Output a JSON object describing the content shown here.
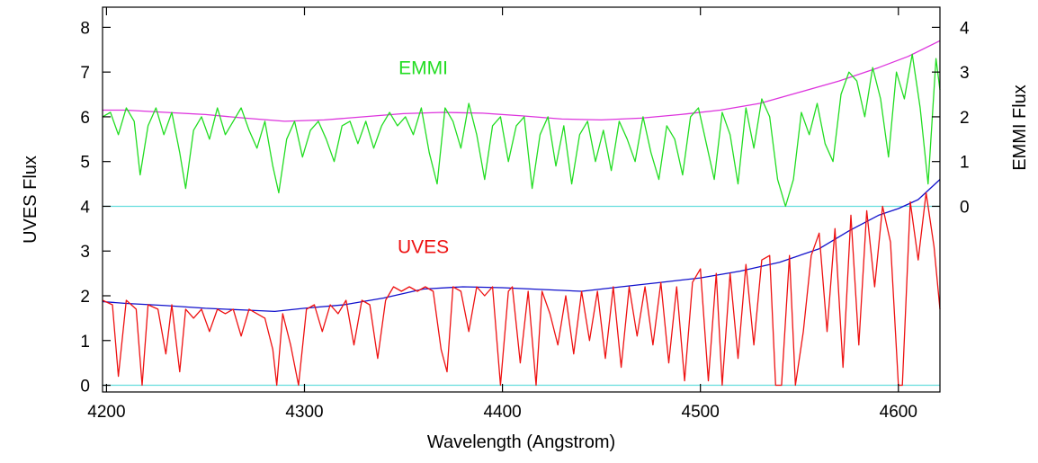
{
  "chart_data": {
    "type": "line",
    "title": "",
    "xlabel": "Wavelength (Angstrom)",
    "ylabel_left": "UVES Flux",
    "ylabel_right": "EMMI Flux",
    "xlim": [
      4198,
      4621
    ],
    "ylim_left": [
      -0.15,
      8.45
    ],
    "ylim_right": [
      -4.15,
      4.45
    ],
    "right_axis_offset": -4,
    "grid": false,
    "x_ticks": [
      4200,
      4300,
      4400,
      4500,
      4600
    ],
    "x_tick_labels": [
      "4200",
      "4300",
      "4400",
      "4500",
      "4600"
    ],
    "y_left_ticks": [
      0,
      1,
      2,
      3,
      4,
      5,
      6,
      7,
      8
    ],
    "y_left_tick_labels": [
      "0",
      "1",
      "2",
      "3",
      "4",
      "5",
      "6",
      "7",
      "8"
    ],
    "y_right_ticks": [
      0,
      1,
      2,
      3,
      4
    ],
    "y_right_tick_labels": [
      "0",
      "1",
      "2",
      "3",
      "4"
    ],
    "annotations": [
      {
        "text": "EMMI",
        "x": 4360,
        "y": 6.95,
        "color": "#22dd22"
      },
      {
        "text": "UVES",
        "x": 4360,
        "y": 2.95,
        "color": "#ee1111"
      }
    ],
    "reference_lines": [
      {
        "y": 0,
        "axis": "left",
        "color": "#66dddd"
      },
      {
        "y": 4,
        "axis": "left",
        "color": "#66dddd"
      }
    ],
    "series": [
      {
        "role": "UVES continuum",
        "axis": "left",
        "color": "#1010cc",
        "x": [
          4198,
          4210,
          4230,
          4250,
          4270,
          4285,
          4300,
          4320,
          4340,
          4360,
          4380,
          4400,
          4420,
          4440,
          4460,
          4480,
          4500,
          4520,
          4540,
          4560,
          4575,
          4590,
          4600,
          4610,
          4621
        ],
        "y": [
          1.87,
          1.83,
          1.78,
          1.72,
          1.68,
          1.65,
          1.72,
          1.8,
          1.95,
          2.15,
          2.2,
          2.18,
          2.14,
          2.1,
          2.2,
          2.3,
          2.4,
          2.55,
          2.75,
          3.05,
          3.45,
          3.8,
          3.95,
          4.15,
          4.6
        ]
      },
      {
        "role": "EMMI continuum",
        "axis": "right",
        "color": "#dd33dd",
        "x": [
          4198,
          4210,
          4230,
          4250,
          4270,
          4290,
          4310,
          4330,
          4350,
          4370,
          4390,
          4410,
          4430,
          4450,
          4470,
          4490,
          4510,
          4530,
          4550,
          4570,
          4590,
          4605,
          4621
        ],
        "y": [
          2.15,
          2.15,
          2.1,
          2.05,
          1.97,
          1.9,
          1.93,
          2.0,
          2.07,
          2.1,
          2.08,
          2.02,
          1.95,
          1.93,
          1.97,
          2.05,
          2.15,
          2.3,
          2.55,
          2.8,
          3.1,
          3.35,
          3.7
        ]
      },
      {
        "role": "EMMI spectrum",
        "axis": "right",
        "color": "#22dd22",
        "x": [
          4198,
          4202,
          4206,
          4210,
          4214,
          4217,
          4221,
          4225,
          4229,
          4233,
          4237,
          4240,
          4244,
          4248,
          4252,
          4256,
          4260,
          4264,
          4268,
          4272,
          4276,
          4280,
          4284,
          4287,
          4291,
          4295,
          4299,
          4303,
          4307,
          4311,
          4315,
          4319,
          4323,
          4327,
          4331,
          4335,
          4339,
          4343,
          4347,
          4351,
          4355,
          4359,
          4363,
          4367,
          4371,
          4375,
          4379,
          4383,
          4387,
          4391,
          4395,
          4399,
          4403,
          4407,
          4411,
          4415,
          4419,
          4423,
          4427,
          4431,
          4435,
          4439,
          4443,
          4447,
          4451,
          4455,
          4459,
          4463,
          4467,
          4471,
          4475,
          4479,
          4483,
          4487,
          4491,
          4495,
          4499,
          4503,
          4507,
          4511,
          4515,
          4519,
          4523,
          4527,
          4531,
          4535,
          4539,
          4543,
          4547,
          4551,
          4555,
          4559,
          4563,
          4567,
          4571,
          4575,
          4579,
          4583,
          4587,
          4591,
          4595,
          4599,
          4603,
          4607,
          4611,
          4615,
          4619,
          4621
        ],
        "y": [
          2.0,
          2.1,
          1.6,
          2.2,
          1.9,
          0.7,
          1.8,
          2.2,
          1.6,
          2.1,
          1.2,
          0.4,
          1.7,
          2.0,
          1.5,
          2.2,
          1.6,
          1.9,
          2.2,
          1.7,
          1.3,
          1.9,
          0.9,
          0.3,
          1.5,
          1.9,
          1.1,
          1.7,
          1.9,
          1.5,
          1.0,
          1.8,
          1.9,
          1.4,
          1.9,
          1.3,
          1.8,
          2.1,
          1.8,
          2.0,
          1.6,
          2.2,
          1.2,
          0.5,
          2.2,
          1.9,
          1.3,
          2.3,
          1.6,
          0.6,
          1.8,
          2.0,
          1.0,
          1.8,
          2.0,
          0.4,
          1.6,
          2.0,
          0.9,
          1.8,
          0.5,
          1.6,
          1.9,
          1.0,
          1.7,
          0.8,
          1.9,
          1.5,
          1.0,
          2.0,
          1.2,
          0.6,
          1.8,
          1.5,
          0.7,
          2.0,
          2.2,
          1.4,
          0.6,
          2.1,
          1.6,
          0.5,
          2.2,
          1.3,
          2.4,
          2.0,
          0.6,
          0.0,
          0.6,
          2.1,
          1.6,
          2.3,
          1.4,
          1.0,
          2.5,
          3.0,
          2.8,
          2.0,
          3.1,
          2.4,
          1.1,
          3.0,
          2.4,
          3.4,
          2.2,
          0.5,
          3.3,
          2.6
        ],
        "label": "EMMI"
      },
      {
        "role": "UVES spectrum",
        "axis": "left",
        "color": "#ee1111",
        "x": [
          4198,
          4203,
          4206,
          4210,
          4215,
          4218,
          4221,
          4226,
          4230,
          4233,
          4237,
          4240,
          4244,
          4248,
          4252,
          4256,
          4260,
          4264,
          4268,
          4272,
          4276,
          4280,
          4284,
          4286,
          4289,
          4293,
          4297,
          4301,
          4305,
          4309,
          4313,
          4317,
          4321,
          4325,
          4329,
          4333,
          4337,
          4341,
          4345,
          4349,
          4353,
          4357,
          4361,
          4365,
          4369,
          4372,
          4375,
          4379,
          4383,
          4387,
          4391,
          4395,
          4399,
          4403,
          4405,
          4409,
          4413,
          4417,
          4420,
          4424,
          4428,
          4432,
          4436,
          4440,
          4444,
          4448,
          4452,
          4456,
          4460,
          4464,
          4468,
          4472,
          4476,
          4480,
          4484,
          4488,
          4492,
          4496,
          4500,
          4504,
          4508,
          4511,
          4515,
          4519,
          4523,
          4527,
          4531,
          4535,
          4538,
          4541,
          4545,
          4548,
          4552,
          4556,
          4560,
          4564,
          4568,
          4572,
          4576,
          4580,
          4584,
          4588,
          4592,
          4596,
          4600,
          4602,
          4606,
          4610,
          4614,
          4618,
          4621
        ],
        "y": [
          1.9,
          1.8,
          0.2,
          1.9,
          1.7,
          0.0,
          1.8,
          1.7,
          0.7,
          1.8,
          0.3,
          1.7,
          1.5,
          1.7,
          1.2,
          1.7,
          1.6,
          1.7,
          1.1,
          1.7,
          1.6,
          1.5,
          0.8,
          0.0,
          1.6,
          0.9,
          0.0,
          1.7,
          1.8,
          1.2,
          1.8,
          1.6,
          1.9,
          0.9,
          1.9,
          1.8,
          0.6,
          1.9,
          2.2,
          2.1,
          2.2,
          2.1,
          2.2,
          2.1,
          0.8,
          0.3,
          2.2,
          2.1,
          1.2,
          2.2,
          2.0,
          2.2,
          0.0,
          2.1,
          2.2,
          0.5,
          2.1,
          0.0,
          2.1,
          1.6,
          0.9,
          2.0,
          0.7,
          2.1,
          1.0,
          2.1,
          0.6,
          2.2,
          0.4,
          2.2,
          1.1,
          2.2,
          0.9,
          2.3,
          0.5,
          2.2,
          0.1,
          2.3,
          2.6,
          0.1,
          2.5,
          0.0,
          2.5,
          0.6,
          2.7,
          0.9,
          2.8,
          2.9,
          0.0,
          0.0,
          2.9,
          0.0,
          1.2,
          2.9,
          3.4,
          1.2,
          3.5,
          0.4,
          3.8,
          0.9,
          3.9,
          2.2,
          4.0,
          3.2,
          0.0,
          0.0,
          4.1,
          2.8,
          4.3,
          3.1,
          1.7
        ],
        "label": "UVES"
      }
    ]
  }
}
